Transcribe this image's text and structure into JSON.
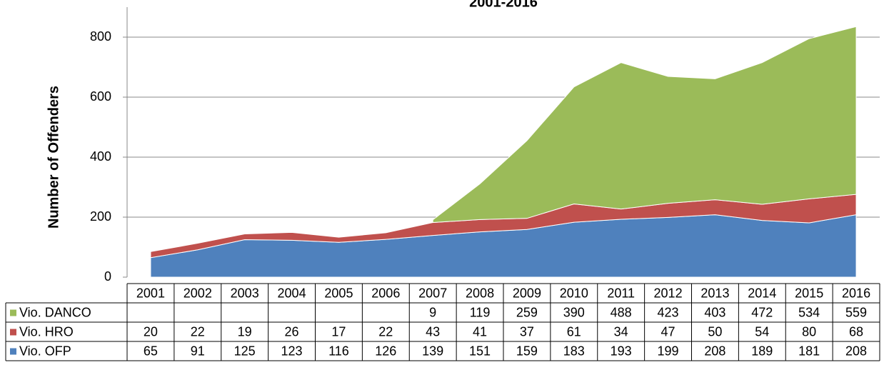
{
  "chart_data": {
    "type": "stacked-area",
    "title": "2001-2016",
    "y_label": "Number of Offenders",
    "categories": [
      "2001",
      "2002",
      "2003",
      "2004",
      "2005",
      "2006",
      "2007",
      "2008",
      "2009",
      "2010",
      "2011",
      "2012",
      "2013",
      "2014",
      "2015",
      "2016"
    ],
    "series": [
      {
        "name": "Vio. DANCO",
        "color": "#9bbb59",
        "values": [
          null,
          null,
          null,
          null,
          null,
          null,
          9,
          119,
          259,
          390,
          488,
          423,
          403,
          472,
          534,
          559
        ]
      },
      {
        "name": "Vio. HRO",
        "color": "#c0504d",
        "values": [
          20,
          22,
          19,
          26,
          17,
          22,
          43,
          41,
          37,
          61,
          34,
          47,
          50,
          54,
          80,
          68
        ]
      },
      {
        "name": "Vio. OFP",
        "color": "#4f81bd",
        "values": [
          65,
          91,
          125,
          123,
          116,
          126,
          139,
          151,
          159,
          183,
          193,
          199,
          208,
          189,
          181,
          208
        ]
      }
    ],
    "ylim": [
      0,
      900
    ],
    "yticks": [
      0,
      200,
      400,
      600,
      800
    ],
    "grid": true
  }
}
